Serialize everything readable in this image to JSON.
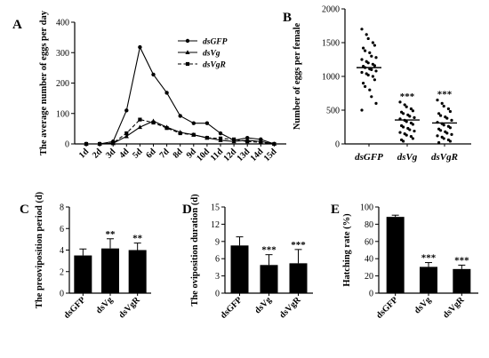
{
  "chart_data": [
    {
      "panel": "A",
      "type": "line",
      "ylabel": "The average number of eggs per day",
      "ylim": [
        0,
        400
      ],
      "yticks": [
        0,
        100,
        200,
        300,
        400
      ],
      "categories": [
        "1d",
        "2d",
        "3d",
        "4d",
        "5d",
        "6d",
        "7d",
        "8d",
        "9d",
        "10d",
        "11d",
        "12d",
        "13d",
        "14d",
        "15d"
      ],
      "legend_position": "top-right",
      "series": [
        {
          "name": "dsGFP",
          "marker": "circle",
          "dash": "solid",
          "values": [
            0,
            0,
            8,
            110,
            318,
            228,
            168,
            92,
            68,
            68,
            35,
            12,
            20,
            15,
            0
          ]
        },
        {
          "name": "dsVg",
          "marker": "triangle",
          "dash": "solid",
          "values": [
            0,
            0,
            2,
            25,
            55,
            75,
            55,
            38,
            30,
            20,
            12,
            8,
            12,
            8,
            0
          ]
        },
        {
          "name": "dsVgR",
          "marker": "square",
          "dash": "dashed",
          "values": [
            0,
            0,
            3,
            35,
            80,
            70,
            52,
            35,
            30,
            20,
            18,
            15,
            8,
            5,
            0
          ]
        }
      ]
    },
    {
      "panel": "B",
      "type": "scatter",
      "ylabel": "Number of eggs per female",
      "ylim": [
        0,
        2000
      ],
      "yticks": [
        0,
        500,
        1000,
        1500,
        2000
      ],
      "categories": [
        "dsGFP",
        "dsVg",
        "dsVgR"
      ],
      "means": [
        1130,
        355,
        310
      ],
      "significance": [
        "",
        "***",
        "***"
      ],
      "points": [
        [
          1700,
          1620,
          1560,
          1500,
          1460,
          1420,
          1380,
          1350,
          1300,
          1280,
          1250,
          1220,
          1200,
          1180,
          1160,
          1150,
          1130,
          1110,
          1100,
          1080,
          1060,
          1040,
          1020,
          1000,
          950,
          900,
          850,
          800,
          700,
          600,
          500
        ],
        [
          620,
          580,
          550,
          520,
          490,
          470,
          450,
          430,
          410,
          390,
          370,
          350,
          330,
          310,
          290,
          270,
          250,
          230,
          210,
          190,
          170,
          150,
          130,
          110,
          80,
          60,
          40
        ],
        [
          650,
          600,
          560,
          520,
          480,
          450,
          420,
          400,
          380,
          350,
          320,
          300,
          280,
          260,
          240,
          220,
          200,
          180,
          160,
          140,
          120,
          100,
          80,
          60,
          40,
          20
        ]
      ]
    },
    {
      "panel": "C",
      "type": "bar",
      "ylabel": "The preoviposition period (d)",
      "ylim": [
        0,
        8
      ],
      "yticks": [
        0,
        2,
        4,
        6,
        8
      ],
      "categories": [
        "dsGFP",
        "dsVg",
        "dsVgR"
      ],
      "values": [
        3.5,
        4.15,
        4.0
      ],
      "errors": [
        0.6,
        0.9,
        0.65
      ],
      "significance": [
        "",
        "**",
        "**"
      ]
    },
    {
      "panel": "D",
      "type": "bar",
      "ylabel": "The oviposition duration (d)",
      "ylim": [
        0,
        15
      ],
      "yticks": [
        0,
        3,
        6,
        9,
        12,
        15
      ],
      "categories": [
        "dsGFP",
        "dsVg",
        "dsVgR"
      ],
      "values": [
        8.3,
        4.9,
        5.2
      ],
      "errors": [
        1.5,
        1.8,
        2.4
      ],
      "significance": [
        "",
        "***",
        "***"
      ]
    },
    {
      "panel": "E",
      "type": "bar",
      "ylabel": "Hatching rate (%)",
      "ylim": [
        0,
        100
      ],
      "yticks": [
        0,
        20,
        40,
        60,
        80,
        100
      ],
      "categories": [
        "dsGFP",
        "dsVg",
        "dsVgR"
      ],
      "values": [
        88.5,
        30.5,
        28
      ],
      "errors": [
        2,
        5,
        4.5
      ],
      "significance": [
        "",
        "***",
        "***"
      ]
    }
  ]
}
